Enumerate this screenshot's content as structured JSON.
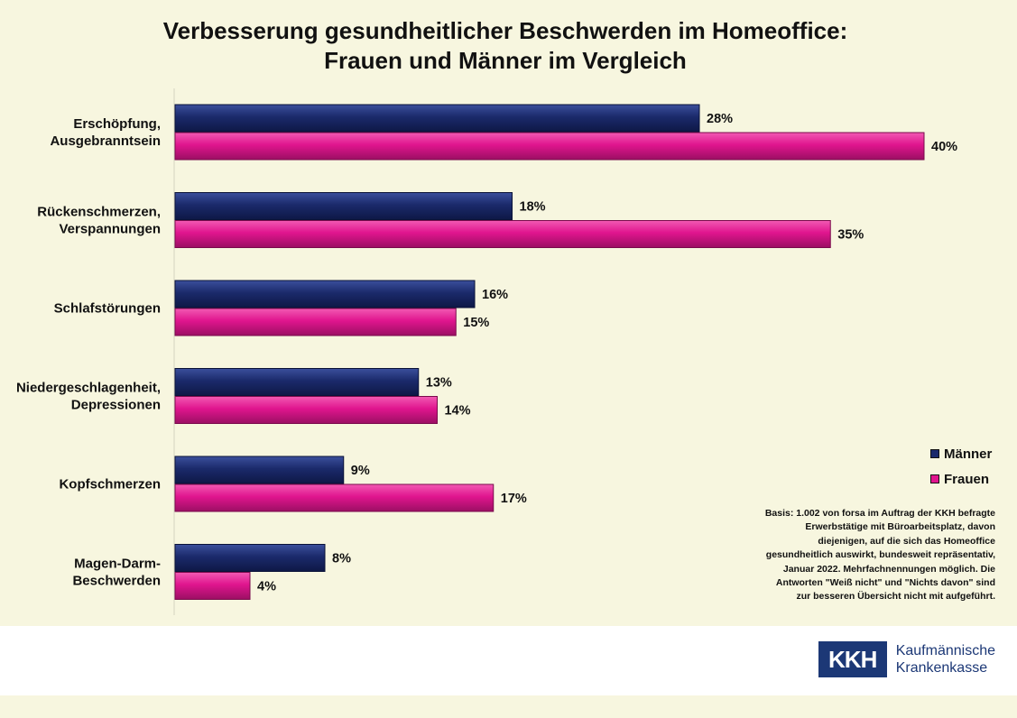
{
  "chart_data": {
    "type": "bar",
    "orientation": "horizontal",
    "title": "Verbesserung gesundheitlicher Beschwerden im Homeoffice:",
    "subtitle": "Frauen und Männer im Vergleich",
    "categories": [
      [
        "Erschöpfung,",
        "Ausgebranntsein"
      ],
      [
        "Rückenschmerzen,",
        "Verspannungen"
      ],
      [
        "Schlafstörungen"
      ],
      [
        "Niedergeschlagenheit,",
        "Depressionen"
      ],
      [
        "Kopfschmerzen"
      ],
      [
        "Magen-Darm-",
        "Beschwerden"
      ]
    ],
    "series": [
      {
        "name": "Männer",
        "values": [
          28,
          18,
          16,
          13,
          9,
          8
        ],
        "color": "#1b2a6b"
      },
      {
        "name": "Frauen",
        "values": [
          40,
          35,
          15,
          14,
          17,
          4
        ],
        "color": "#e0158e"
      }
    ],
    "value_suffix": "%",
    "xlim": [
      0,
      45
    ],
    "grid": false,
    "legend_position": "right"
  },
  "note": "Basis: 1.002 von forsa im Auftrag der KKH befragte Erwerbstätige mit Büroarbeitsplatz, davon diejenigen, auf die sich das Homeoffice gesundheitlich auswirkt, bundesweit repräsentativ, Januar 2022. Mehrfachnennungen möglich. Die Antworten \"Weiß nicht\" und \"Nichts davon\" sind zur besseren Übersicht nicht mit aufgeführt.",
  "note_lines": [
    "Basis: 1.002 von forsa im Auftrag der KKH befragte",
    "Erwerbstätige mit Büroarbeitsplatz, davon",
    "diejenigen, auf die sich das Homeoffice",
    "gesundheitlich auswirkt, bundesweit repräsentativ,",
    "Januar 2022. Mehrfachnennungen möglich. Die",
    "Antworten \"Weiß nicht\" und \"Nichts davon\" sind",
    "zur besseren Übersicht nicht mit aufgeführt."
  ],
  "logo": {
    "mark": "KKH",
    "line1": "Kaufmännische",
    "line2": "Krankenkasse"
  }
}
